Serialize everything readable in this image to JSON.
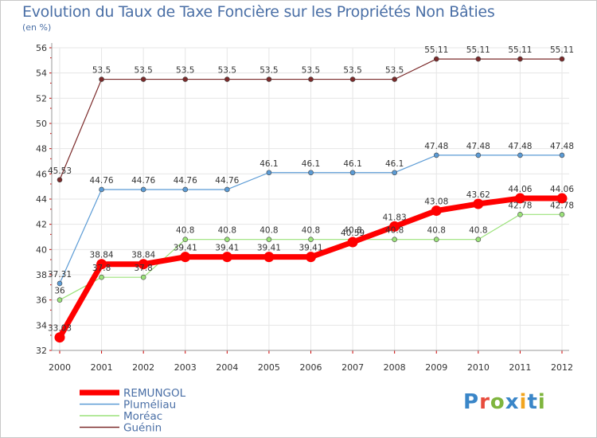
{
  "chart_data": {
    "type": "line",
    "title": "Evolution du Taux de Taxe Foncière sur les Propriétés Non Bâties",
    "subtitle": "(en %)",
    "x": [
      "2000",
      "2001",
      "2002",
      "2003",
      "2004",
      "2005",
      "2006",
      "2007",
      "2008",
      "2009",
      "2010",
      "2011",
      "2012"
    ],
    "ylim": [
      32,
      56
    ],
    "yticks": [
      32,
      34,
      36,
      38,
      40,
      42,
      44,
      46,
      48,
      50,
      52,
      54,
      56
    ],
    "grid": true,
    "legend_position": "bottom-left",
    "series": [
      {
        "name": "Guénin",
        "color": "#7b2a2a",
        "width": 1.2,
        "values": [
          45.53,
          53.5,
          53.5,
          53.5,
          53.5,
          53.5,
          53.5,
          53.5,
          53.5,
          55.11,
          55.11,
          55.11,
          55.11
        ],
        "labels": [
          "45.53",
          "53.5",
          "53.5",
          "53.5",
          "53.5",
          "53.5",
          "53.5",
          "53.5",
          "53.5",
          "55.11",
          "55.11",
          "55.11",
          "55.11"
        ]
      },
      {
        "name": "Pluméliau",
        "color": "#5b9bd5",
        "width": 1.2,
        "values": [
          37.31,
          44.76,
          44.76,
          44.76,
          44.76,
          46.1,
          46.1,
          46.1,
          46.1,
          47.48,
          47.48,
          47.48,
          47.48
        ],
        "labels": [
          "37.31",
          "44.76",
          "44.76",
          "44.76",
          "44.76",
          "46.1",
          "46.1",
          "46.1",
          "46.1",
          "47.48",
          "47.48",
          "47.48",
          "47.48"
        ]
      },
      {
        "name": "Moréac",
        "color": "#9be27a",
        "width": 1.2,
        "values": [
          36,
          37.8,
          37.8,
          40.8,
          40.8,
          40.8,
          40.8,
          40.8,
          40.8,
          40.8,
          40.8,
          42.78,
          42.78
        ],
        "labels": [
          "36",
          "37.8",
          "37.8",
          "40.8",
          "40.8",
          "40.8",
          "40.8",
          "40.8",
          "40.8",
          "40.8",
          "40.8",
          "42.78",
          "42.78"
        ]
      },
      {
        "name": "REMUNGOL",
        "color": "#ff0000",
        "width": 7,
        "values": [
          33.03,
          38.84,
          38.84,
          39.41,
          39.41,
          39.41,
          39.41,
          40.59,
          41.83,
          43.08,
          43.62,
          44.06,
          44.06
        ],
        "labels": [
          "33.03",
          "38.84",
          "38.84",
          "39.41",
          "39.41",
          "39.41",
          "39.41",
          "40.59",
          "41.83",
          "43.08",
          "43.62",
          "44.06",
          "44.06"
        ]
      }
    ]
  },
  "legend": [
    {
      "label": "REMUNGOL",
      "color": "#ff0000",
      "thick": true
    },
    {
      "label": "Pluméliau",
      "color": "#5b9bd5",
      "thick": false
    },
    {
      "label": "Moréac",
      "color": "#9be27a",
      "thick": false
    },
    {
      "label": "Guénin",
      "color": "#7b2a2a",
      "thick": false
    }
  ],
  "logo": {
    "text": "Proxiti",
    "letters": [
      "P",
      "r",
      "o",
      "x",
      "i",
      "t",
      "i"
    ],
    "colors": [
      "#3a86c8",
      "#e84c3d",
      "#7fb53e",
      "#3a86c8",
      "#f2a51f",
      "#3a86c8",
      "#7fb53e"
    ]
  }
}
